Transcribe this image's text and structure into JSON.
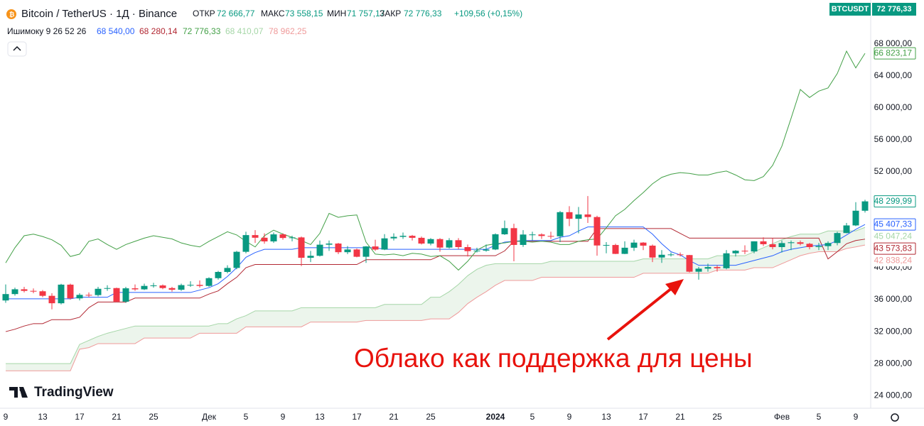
{
  "header": {
    "symbol": "Bitcoin / TetherUS · 1Д · Binance",
    "ohlc": [
      {
        "label": "ОТКР",
        "value": "72 666,77"
      },
      {
        "label": "МАКС",
        "value": "73 558,15"
      },
      {
        "label": "МИН",
        "value": "71 757,17"
      },
      {
        "label": "ЗАКР",
        "value": "72 776,33"
      }
    ],
    "change": "+109,56 (+0,15%)",
    "indicator": {
      "name": "Ишимоку 9 26 52 26",
      "values": [
        "68 540,00",
        "68 280,14",
        "72 776,33",
        "68 410,07",
        "78 962,25"
      ]
    },
    "ticker": "BTCUSDT",
    "price": "72 776,33"
  },
  "annotation": "Облако как поддержка для цены",
  "logo": "TradingView",
  "chart_data": {
    "type": "candlestick",
    "categories": [
      "9",
      null,
      null,
      null,
      "13",
      null,
      null,
      null,
      "17",
      null,
      null,
      null,
      "21",
      null,
      null,
      null,
      "25",
      null,
      null,
      null,
      null,
      null,
      "Дек",
      null,
      null,
      null,
      "5",
      null,
      null,
      null,
      "9",
      null,
      null,
      null,
      "13",
      null,
      null,
      null,
      "17",
      null,
      null,
      null,
      "21",
      null,
      null,
      null,
      "25",
      null,
      null,
      null,
      null,
      null,
      null,
      "2024",
      null,
      null,
      null,
      "5",
      null,
      null,
      null,
      "9",
      null,
      null,
      null,
      "13",
      null,
      null,
      null,
      "17",
      null,
      null,
      null,
      "21",
      null,
      null,
      null,
      "25",
      null,
      null,
      null,
      null,
      null,
      null,
      "Фев",
      null,
      null,
      null,
      "5",
      null,
      null,
      null,
      "9",
      null
    ],
    "up_color": "#089981",
    "down_color": "#f23645",
    "candles": [
      [
        35900,
        37900,
        35600,
        36700
      ],
      [
        36700,
        37500,
        36500,
        37300
      ],
      [
        37300,
        37600,
        36900,
        37100
      ],
      [
        37100,
        37400,
        36800,
        37050
      ],
      [
        37050,
        37200,
        36300,
        36480
      ],
      [
        36480,
        36800,
        34800,
        35550
      ],
      [
        35550,
        37980,
        35400,
        37880
      ],
      [
        37880,
        38000,
        36000,
        36160
      ],
      [
        36160,
        36800,
        35900,
        36600
      ],
      [
        36600,
        36900,
        36300,
        36570
      ],
      [
        36570,
        37600,
        36400,
        37360
      ],
      [
        37360,
        37800,
        37100,
        37450
      ],
      [
        37450,
        37500,
        35700,
        35750
      ],
      [
        35750,
        37600,
        35600,
        37420
      ],
      [
        37420,
        37900,
        37100,
        37290
      ],
      [
        37290,
        38000,
        37200,
        37720
      ],
      [
        37720,
        38100,
        37500,
        37780
      ],
      [
        37780,
        37900,
        37300,
        37450
      ],
      [
        37450,
        37600,
        37000,
        37240
      ],
      [
        37240,
        38000,
        37100,
        37820
      ],
      [
        37820,
        38300,
        37600,
        37850
      ],
      [
        37850,
        38400,
        37500,
        37720
      ],
      [
        37720,
        38800,
        37600,
        38690
      ],
      [
        38690,
        39600,
        38500,
        39470
      ],
      [
        39470,
        40300,
        39300,
        39970
      ],
      [
        39970,
        42100,
        39800,
        41990
      ],
      [
        41990,
        44500,
        41800,
        44080
      ],
      [
        44080,
        44700,
        43100,
        43750
      ],
      [
        43750,
        44300,
        43000,
        43290
      ],
      [
        43290,
        44400,
        43100,
        44170
      ],
      [
        44170,
        44300,
        43500,
        43720
      ],
      [
        43720,
        44000,
        43300,
        43790
      ],
      [
        43790,
        43900,
        40200,
        41240
      ],
      [
        41240,
        42100,
        40700,
        41490
      ],
      [
        41490,
        43400,
        41400,
        42880
      ],
      [
        42880,
        43400,
        42100,
        43020
      ],
      [
        43020,
        43100,
        41700,
        41940
      ],
      [
        41940,
        42700,
        41700,
        42280
      ],
      [
        42280,
        42400,
        41300,
        41370
      ],
      [
        41370,
        42700,
        40600,
        42660
      ],
      [
        42660,
        43500,
        42100,
        42270
      ],
      [
        42270,
        44200,
        42200,
        43670
      ],
      [
        43670,
        44300,
        43400,
        43860
      ],
      [
        43860,
        44400,
        43600,
        43990
      ],
      [
        43990,
        44100,
        43400,
        43740
      ],
      [
        43740,
        43900,
        42900,
        43020
      ],
      [
        43020,
        43700,
        42800,
        43580
      ],
      [
        43580,
        43700,
        42000,
        42520
      ],
      [
        42520,
        43700,
        42400,
        43440
      ],
      [
        43440,
        43700,
        42300,
        42580
      ],
      [
        42580,
        42900,
        41400,
        42070
      ],
      [
        42070,
        42500,
        41900,
        42140
      ],
      [
        42140,
        42900,
        42000,
        42280
      ],
      [
        42280,
        44300,
        42200,
        44180
      ],
      [
        44180,
        45900,
        44100,
        44950
      ],
      [
        44950,
        45500,
        40800,
        42850
      ],
      [
        42850,
        44700,
        42600,
        44150
      ],
      [
        44150,
        44500,
        43400,
        44160
      ],
      [
        44160,
        44300,
        43600,
        43970
      ],
      [
        43970,
        44500,
        43600,
        43930
      ],
      [
        43930,
        47100,
        43200,
        46950
      ],
      [
        46950,
        47700,
        45200,
        46120
      ],
      [
        46120,
        47600,
        44300,
        46660
      ],
      [
        46660,
        48970,
        45600,
        46340
      ],
      [
        46340,
        46500,
        41500,
        42780
      ],
      [
        42780,
        43200,
        41800,
        42840
      ],
      [
        42840,
        43000,
        41700,
        41730
      ],
      [
        41730,
        43300,
        41700,
        42500
      ],
      [
        42500,
        43500,
        42100,
        43140
      ],
      [
        43140,
        43200,
        42200,
        42760
      ],
      [
        42760,
        42900,
        40700,
        41270
      ],
      [
        41270,
        42200,
        40600,
        41620
      ],
      [
        41620,
        41900,
        41400,
        41660
      ],
      [
        41660,
        41900,
        41400,
        41580
      ],
      [
        41580,
        41600,
        39400,
        39500
      ],
      [
        39500,
        40100,
        38500,
        39880
      ],
      [
        39880,
        40500,
        39500,
        40080
      ],
      [
        40080,
        40300,
        39500,
        39930
      ],
      [
        39930,
        42200,
        39800,
        41800
      ],
      [
        41800,
        42200,
        41400,
        42120
      ],
      [
        42120,
        42800,
        41700,
        42030
      ],
      [
        42030,
        43300,
        41800,
        43300
      ],
      [
        43300,
        43800,
        42700,
        42940
      ],
      [
        42940,
        43700,
        42300,
        42580
      ],
      [
        42580,
        43400,
        41900,
        43080
      ],
      [
        43080,
        43400,
        42200,
        43180
      ],
      [
        43180,
        43400,
        42800,
        42990
      ],
      [
        42990,
        43100,
        42300,
        42580
      ],
      [
        42580,
        43100,
        42200,
        42700
      ],
      [
        42700,
        43300,
        42200,
        43090
      ],
      [
        43090,
        44500,
        42800,
        44340
      ],
      [
        44340,
        45600,
        44300,
        45290
      ],
      [
        45290,
        48200,
        45200,
        47130
      ],
      [
        47130,
        48500,
        46900,
        48299.99
      ]
    ],
    "last_close_label": "48 299,99",
    "lines": [
      {
        "color": "#2962ff",
        "last_label": "45 407,33",
        "values": [
          36100,
          36100,
          36100,
          36100,
          36100,
          36100,
          36100,
          36100,
          36300,
          36300,
          36300,
          36300,
          36900,
          36900,
          36900,
          36900,
          36900,
          36900,
          36900,
          36900,
          36900,
          37200,
          37500,
          38000,
          38900,
          40000,
          41300,
          41900,
          42300,
          42300,
          42300,
          42300,
          42500,
          42500,
          42500,
          42500,
          42500,
          42500,
          42500,
          42500,
          42500,
          42300,
          42300,
          42300,
          42300,
          42300,
          42300,
          42300,
          42300,
          42300,
          42300,
          42300,
          42300,
          42800,
          43200,
          43300,
          43400,
          43400,
          43400,
          43400,
          43800,
          44000,
          44600,
          45100,
          45100,
          45100,
          45100,
          45100,
          45100,
          45100,
          44200,
          43000,
          42000,
          41600,
          40900,
          40300,
          40300,
          40300,
          40300,
          40300,
          40600,
          40900,
          41200,
          41500,
          42000,
          42300,
          42500,
          42700,
          42800,
          42900,
          43400,
          44100,
          44800,
          45407.33
        ]
      },
      {
        "color": "#b22833",
        "last_label": "43 573,83",
        "values": [
          32000,
          32300,
          32700,
          33000,
          33000,
          33500,
          33500,
          33500,
          33800,
          35000,
          35700,
          35700,
          35700,
          35700,
          36200,
          36200,
          36200,
          36200,
          36200,
          36200,
          36200,
          36200,
          36700,
          37100,
          38000,
          38800,
          40000,
          40400,
          40400,
          40400,
          40400,
          40400,
          40400,
          40400,
          40400,
          40400,
          40400,
          40400,
          40400,
          41000,
          41000,
          41000,
          41000,
          41000,
          41000,
          41000,
          41000,
          41500,
          41500,
          41500,
          41500,
          41500,
          41500,
          41500,
          42100,
          43300,
          43300,
          43300,
          43300,
          43300,
          43300,
          43300,
          43300,
          43300,
          44900,
          44900,
          44900,
          44900,
          44900,
          44900,
          44900,
          44900,
          44900,
          44300,
          43700,
          43700,
          43700,
          43700,
          43700,
          43700,
          43700,
          43700,
          43700,
          43700,
          43700,
          43700,
          43700,
          43700,
          43700,
          41100,
          42000,
          43000,
          43400,
          43573.83
        ]
      },
      {
        "color": "#43a047",
        "last_label": "66 823,17",
        "values": [
          40600,
          42500,
          44000,
          44200,
          43900,
          43500,
          42800,
          41400,
          41700,
          43300,
          43600,
          42900,
          42300,
          42900,
          43300,
          43700,
          44000,
          43800,
          43600,
          43100,
          42800,
          42600,
          43300,
          43900,
          44500,
          44100,
          43300,
          42600,
          44000,
          44700,
          44200,
          43800,
          43400,
          42900,
          44300,
          46800,
          46300,
          46500,
          46600,
          43200,
          41700,
          41600,
          41700,
          41500,
          41800,
          41700,
          41400,
          41500,
          40800,
          39700,
          40800,
          42200,
          42800,
          43000,
          43100,
          43300,
          43300,
          43200,
          43300,
          43200,
          42900,
          42900,
          43300,
          43500,
          43600,
          45000,
          46500,
          47300,
          48400,
          49400,
          50500,
          51300,
          51700,
          51900,
          51800,
          51600,
          51600,
          51900,
          52100,
          51600,
          51000,
          50900,
          51400,
          52800,
          55200,
          58700,
          62300,
          61300,
          62100,
          62500,
          64300,
          67100,
          65000,
          66823.17
        ]
      },
      {
        "color": "#a5d6a7",
        "last_label": "45 047,24",
        "values": [
          28000,
          28000,
          28000,
          28000,
          28000,
          28000,
          28000,
          28000,
          30400,
          30900,
          31400,
          31800,
          32100,
          32400,
          32700,
          32700,
          32700,
          32700,
          32700,
          32700,
          32700,
          32700,
          32700,
          33000,
          33000,
          33600,
          34000,
          34600,
          34600,
          34600,
          34600,
          34600,
          35000,
          35000,
          35000,
          35000,
          35000,
          35000,
          35000,
          35000,
          35000,
          35400,
          35400,
          35400,
          35400,
          35400,
          36300,
          36300,
          37000,
          37900,
          39000,
          39800,
          40300,
          40500,
          40500,
          40500,
          40500,
          40500,
          40500,
          40800,
          40800,
          40800,
          40800,
          40800,
          40800,
          40800,
          40800,
          40800,
          40800,
          41100,
          41100,
          41100,
          41100,
          41100,
          41100,
          41100,
          41100,
          41500,
          41500,
          41500,
          41500,
          42000,
          42500,
          43000,
          43500,
          43900,
          44200,
          44200,
          44200,
          44600,
          44600,
          44600,
          44600,
          45047.24
        ]
      },
      {
        "color": "#ef9a9a",
        "last_label": "42 838,24",
        "values": [
          27100,
          27100,
          27100,
          27100,
          27100,
          27100,
          27100,
          27100,
          29800,
          30000,
          30500,
          30500,
          30500,
          30500,
          30500,
          31200,
          31200,
          31200,
          31200,
          31200,
          31200,
          31800,
          31800,
          31800,
          31800,
          31800,
          32600,
          32600,
          32600,
          32600,
          32600,
          32600,
          32600,
          33200,
          33200,
          33200,
          33200,
          33200,
          33200,
          33400,
          33400,
          33400,
          33400,
          33400,
          33400,
          33400,
          33600,
          33600,
          33600,
          34400,
          35500,
          36300,
          37000,
          37800,
          38400,
          38400,
          38400,
          38400,
          38800,
          38800,
          38800,
          38800,
          38800,
          38800,
          38800,
          38800,
          38800,
          38800,
          38800,
          39300,
          39300,
          39300,
          39300,
          39300,
          39300,
          39300,
          39300,
          39700,
          39700,
          39700,
          39700,
          40000,
          40000,
          40000,
          40500,
          41000,
          41500,
          41800,
          42000,
          42000,
          42000,
          42400,
          42600,
          42838.24
        ]
      }
    ],
    "cloud_color": "#43a047",
    "ylim": [
      22500,
      73500
    ],
    "yticks": [
      {
        "value": 24000,
        "label": "24 000,00"
      },
      {
        "value": 28000,
        "label": "28 000,00"
      },
      {
        "value": 32000,
        "label": "32 000,00"
      },
      {
        "value": 36000,
        "label": "36 000,00"
      },
      {
        "value": 40000,
        "label": "40 000,00"
      },
      {
        "value": 44000,
        "label": "44 000,00"
      },
      {
        "value": 48000,
        "label": "48 000,00"
      },
      {
        "value": 52000,
        "label": "52 000,00"
      },
      {
        "value": 56000,
        "label": "56 000,00"
      },
      {
        "value": 60000,
        "label": "60 000,00"
      },
      {
        "value": 64000,
        "label": "64 000,00"
      },
      {
        "value": 68000,
        "label": "68 000,00"
      }
    ],
    "grid": false
  }
}
